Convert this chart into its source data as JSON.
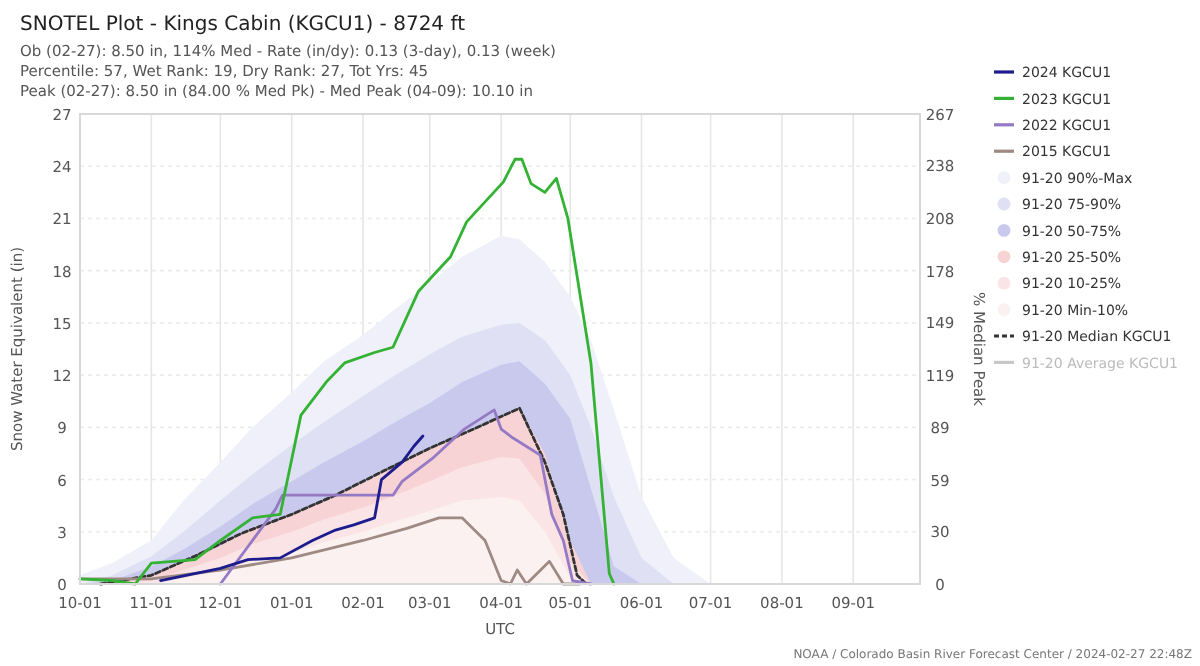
{
  "chart_data": {
    "type": "line",
    "title": "SNOTEL Plot - Kings Cabin (KGCU1) - 8724 ft",
    "subtitle": "Ob (02-27): 8.50 in, 114% Med - Rate (in/dy): 0.13 (3-day), 0.13 (week)\nPercentile: 57, Wet Rank: 19, Dry Rank: 27, Tot Yrs: 45\nPeak (02-27): 8.50 in (84.00 % Med Pk) - Med Peak (04-09): 10.10 in",
    "xlabel": "UTC",
    "ylabel": "Snow Water Equivalent (in)",
    "y2label": "% Median Peak",
    "annotations": [
      "NOAA / Colorado Basin River Forecast Center / 2024-02-27 22:48Z"
    ],
    "x": [
      "2023-10-01",
      "2023-10-15",
      "2023-11-01",
      "2023-11-15",
      "2023-12-01",
      "2023-12-15",
      "2024-01-01",
      "2024-01-15",
      "2024-02-01",
      "2024-02-15",
      "2024-03-01",
      "2024-03-15",
      "2024-04-01",
      "2024-04-09",
      "2024-04-20",
      "2024-05-01",
      "2024-05-10",
      "2024-05-20",
      "2024-06-01",
      "2024-06-15",
      "2024-07-01"
    ],
    "xlim": [
      "2023-10-01",
      "2024-09-30"
    ],
    "xticks": [
      {
        "value": "2023-10-01",
        "label": "10-01"
      },
      {
        "value": "2023-11-01",
        "label": "11-01"
      },
      {
        "value": "2023-12-01",
        "label": "12-01"
      },
      {
        "value": "2024-01-01",
        "label": "01-01"
      },
      {
        "value": "2024-02-01",
        "label": "02-01"
      },
      {
        "value": "2024-03-01",
        "label": "03-01"
      },
      {
        "value": "2024-04-01",
        "label": "04-01"
      },
      {
        "value": "2024-05-01",
        "label": "05-01"
      },
      {
        "value": "2024-06-01",
        "label": "06-01"
      },
      {
        "value": "2024-07-01",
        "label": "07-01"
      },
      {
        "value": "2024-08-01",
        "label": "08-01"
      },
      {
        "value": "2024-09-01",
        "label": "09-01"
      }
    ],
    "ylim": [
      0,
      27
    ],
    "yticks": [
      0,
      3,
      6,
      9,
      12,
      15,
      18,
      21,
      24,
      27
    ],
    "y2lim": [
      0,
      267
    ],
    "y2ticks": [
      0,
      30,
      59,
      89,
      119,
      149,
      178,
      208,
      238,
      267
    ],
    "grid": true,
    "legend": "right",
    "series": [
      {
        "name": "2024 KGCU1",
        "color": "#1c1c8f",
        "x": [
          "2023-11-05",
          "2023-12-01",
          "2023-12-13",
          "2023-12-27",
          "2024-01-10",
          "2024-01-20",
          "2024-01-28",
          "2024-02-06",
          "2024-02-09",
          "2024-02-18",
          "2024-02-23",
          "2024-02-27"
        ],
        "values": [
          0.2,
          0.9,
          1.4,
          1.5,
          2.5,
          3.1,
          3.4,
          3.8,
          6.0,
          7.0,
          7.9,
          8.5
        ]
      },
      {
        "name": "2023 KGCU1",
        "color": "#33b233",
        "x": [
          "2023-10-01",
          "2023-10-15",
          "2023-10-25",
          "2023-11-01",
          "2023-11-20",
          "2023-12-01",
          "2023-12-15",
          "2023-12-27",
          "2024-01-05",
          "2024-01-16",
          "2024-01-24",
          "2024-02-06",
          "2024-02-14",
          "2024-02-25",
          "2024-03-10",
          "2024-03-17",
          "2024-04-02",
          "2024-04-07",
          "2024-04-10",
          "2024-04-14",
          "2024-04-20",
          "2024-04-25",
          "2024-04-30",
          "2024-05-10",
          "2024-05-18",
          "2024-05-20"
        ],
        "values": [
          0.3,
          0.2,
          0.0,
          1.2,
          1.4,
          2.5,
          3.8,
          4.0,
          9.7,
          11.6,
          12.7,
          13.3,
          13.6,
          16.8,
          18.8,
          20.8,
          23.1,
          24.4,
          24.4,
          23.0,
          22.5,
          23.3,
          21.0,
          12.7,
          0.6,
          0.0
        ]
      },
      {
        "name": "2022 KGCU1",
        "color": "#9479c4",
        "x": [
          "2023-12-01",
          "2023-12-25",
          "2023-12-28",
          "2024-02-14",
          "2024-02-18",
          "2024-03-02",
          "2024-03-16",
          "2024-03-29",
          "2024-04-01",
          "2024-04-06",
          "2024-04-18",
          "2024-04-23",
          "2024-04-28",
          "2024-05-02",
          "2024-05-10"
        ],
        "values": [
          0.0,
          4.3,
          5.1,
          5.1,
          5.9,
          7.2,
          8.9,
          10.0,
          8.9,
          8.4,
          7.4,
          4.0,
          2.5,
          0.2,
          0.0
        ]
      },
      {
        "name": "2015 KGCU1",
        "color": "#9e8a82",
        "x": [
          "2023-10-01",
          "2023-11-01",
          "2023-12-01",
          "2024-01-01",
          "2024-02-01",
          "2024-02-20",
          "2024-03-05",
          "2024-03-15",
          "2024-03-25",
          "2024-04-01",
          "2024-04-05",
          "2024-04-08",
          "2024-04-12",
          "2024-04-22",
          "2024-04-28",
          "2024-05-05"
        ],
        "values": [
          0.3,
          0.3,
          0.8,
          1.5,
          2.5,
          3.2,
          3.8,
          3.8,
          2.5,
          0.2,
          0.0,
          0.8,
          0.0,
          1.3,
          0.0,
          0.0
        ]
      },
      {
        "name": "91-20 90%-Max",
        "type": "area",
        "color": "#f0f0fa",
        "values": [
          0.5,
          1.2,
          2.5,
          4.8,
          7.0,
          9.0,
          11.0,
          12.8,
          14.3,
          15.8,
          17.3,
          18.8,
          20.0,
          19.8,
          18.5,
          16.5,
          14.0,
          10.0,
          5.0,
          1.5,
          0
        ]
      },
      {
        "name": "91-20 75-90%",
        "type": "area",
        "color": "#e0e0f5",
        "values": [
          0,
          0.5,
          1.6,
          3.0,
          4.8,
          6.3,
          8.0,
          9.3,
          10.8,
          12.0,
          13.2,
          14.2,
          14.9,
          15.0,
          14.0,
          12.0,
          9.0,
          5.0,
          1.5,
          0,
          0
        ]
      },
      {
        "name": "91-20 50-75%",
        "type": "area",
        "color": "#c9c9ee",
        "values": [
          0,
          0.2,
          1.0,
          2.0,
          3.3,
          4.6,
          5.9,
          7.0,
          8.2,
          9.3,
          10.4,
          11.6,
          12.6,
          12.8,
          11.5,
          9.5,
          5.5,
          1.0,
          0,
          0,
          0
        ]
      },
      {
        "name": "91-20 25-50%",
        "type": "area",
        "color": "#f7d3d6",
        "values": [
          0,
          0,
          0.5,
          1.3,
          2.2,
          3.2,
          4.0,
          4.8,
          5.8,
          6.8,
          7.8,
          8.6,
          9.6,
          10.1,
          7.5,
          2.5,
          0,
          0,
          0,
          0,
          0
        ]
      },
      {
        "name": "91-20 10-25%",
        "type": "area",
        "color": "#fae4e5",
        "values": [
          0,
          0,
          0.2,
          0.8,
          1.5,
          2.3,
          3.0,
          3.7,
          4.4,
          5.1,
          5.9,
          6.7,
          7.3,
          7.2,
          5.2,
          1.2,
          0,
          0,
          0,
          0,
          0
        ]
      },
      {
        "name": "91-20 Min-10%",
        "type": "area",
        "color": "#fbf1f1",
        "values": [
          0,
          0,
          0,
          0.3,
          0.8,
          1.3,
          1.8,
          2.4,
          3.0,
          3.6,
          4.2,
          4.8,
          5.0,
          4.8,
          3.0,
          0.4,
          0,
          0,
          0,
          0,
          0
        ]
      },
      {
        "name": "91-20 Median KGCU1",
        "color": "#333333",
        "line_style": "dotted",
        "x": [
          "2023-10-10",
          "2023-11-01",
          "2023-11-20",
          "2023-12-10",
          "2024-01-01",
          "2024-01-20",
          "2024-02-10",
          "2024-03-01",
          "2024-03-20",
          "2024-04-09",
          "2024-04-20",
          "2024-04-28",
          "2024-05-04",
          "2024-05-08"
        ],
        "values": [
          0,
          0.5,
          1.6,
          2.9,
          4.0,
          5.1,
          6.5,
          7.8,
          8.9,
          10.1,
          7.0,
          4.0,
          0.5,
          0
        ]
      },
      {
        "name": "91-20 Average KGCU1",
        "color": "#c8c8c8",
        "values": [
          null,
          null,
          null,
          null,
          null,
          null,
          null,
          null,
          null,
          null,
          null,
          null,
          null,
          null,
          null,
          null,
          null,
          null,
          null,
          null,
          null
        ]
      }
    ]
  }
}
